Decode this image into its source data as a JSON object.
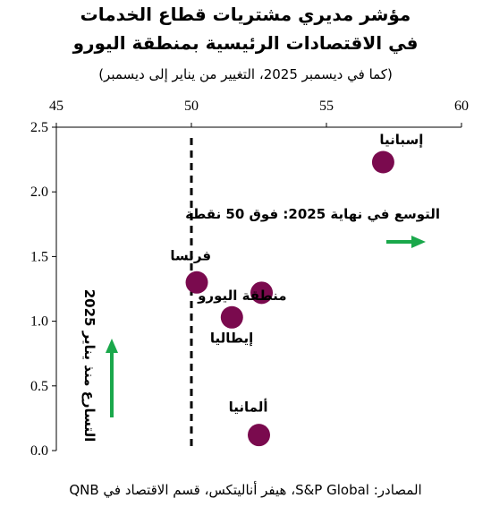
{
  "title_line1": "مؤشر مديري مشتريات قطاع الخدمات",
  "title_line2": "في الاقتصادات الرئيسية بمنطقة اليورو",
  "subtitle": "(كما في ديسمبر 2025، التغيير من يناير إلى ديسمبر)",
  "source": "المصادر: S&P Global، هيفر أناليتكس، قسم الاقتصاد في QNB",
  "colors": {
    "marker": "#7a0a4e",
    "arrow": "#1aa84b",
    "axis": "#000000"
  },
  "chart_data": {
    "type": "scatter",
    "x_axis_position": "top",
    "xlim": [
      45,
      60
    ],
    "ylim": [
      0.0,
      2.5
    ],
    "x_ticks": [
      "45",
      "50",
      "55",
      "60"
    ],
    "y_ticks": [
      "0.0",
      "0.5",
      "1.0",
      "1.5",
      "2.0",
      "2.5"
    ],
    "grid": false,
    "points": [
      {
        "label": "إسبانيا",
        "x": 57.1,
        "y": 2.23
      },
      {
        "label": "فرنسا",
        "x": 50.2,
        "y": 1.3
      },
      {
        "label": "منطقة اليورو",
        "x": 52.6,
        "y": 1.22
      },
      {
        "label": "إيطاليا",
        "x": 51.5,
        "y": 1.03
      },
      {
        "label": "ألمانيا",
        "x": 52.5,
        "y": 0.12
      }
    ],
    "reference_line": {
      "x": 50
    },
    "annotations": {
      "expansion": "التوسع في نهاية 2025: فوق 50 نقطة",
      "acceleration": "التسارع منذ يناير 2025"
    }
  }
}
